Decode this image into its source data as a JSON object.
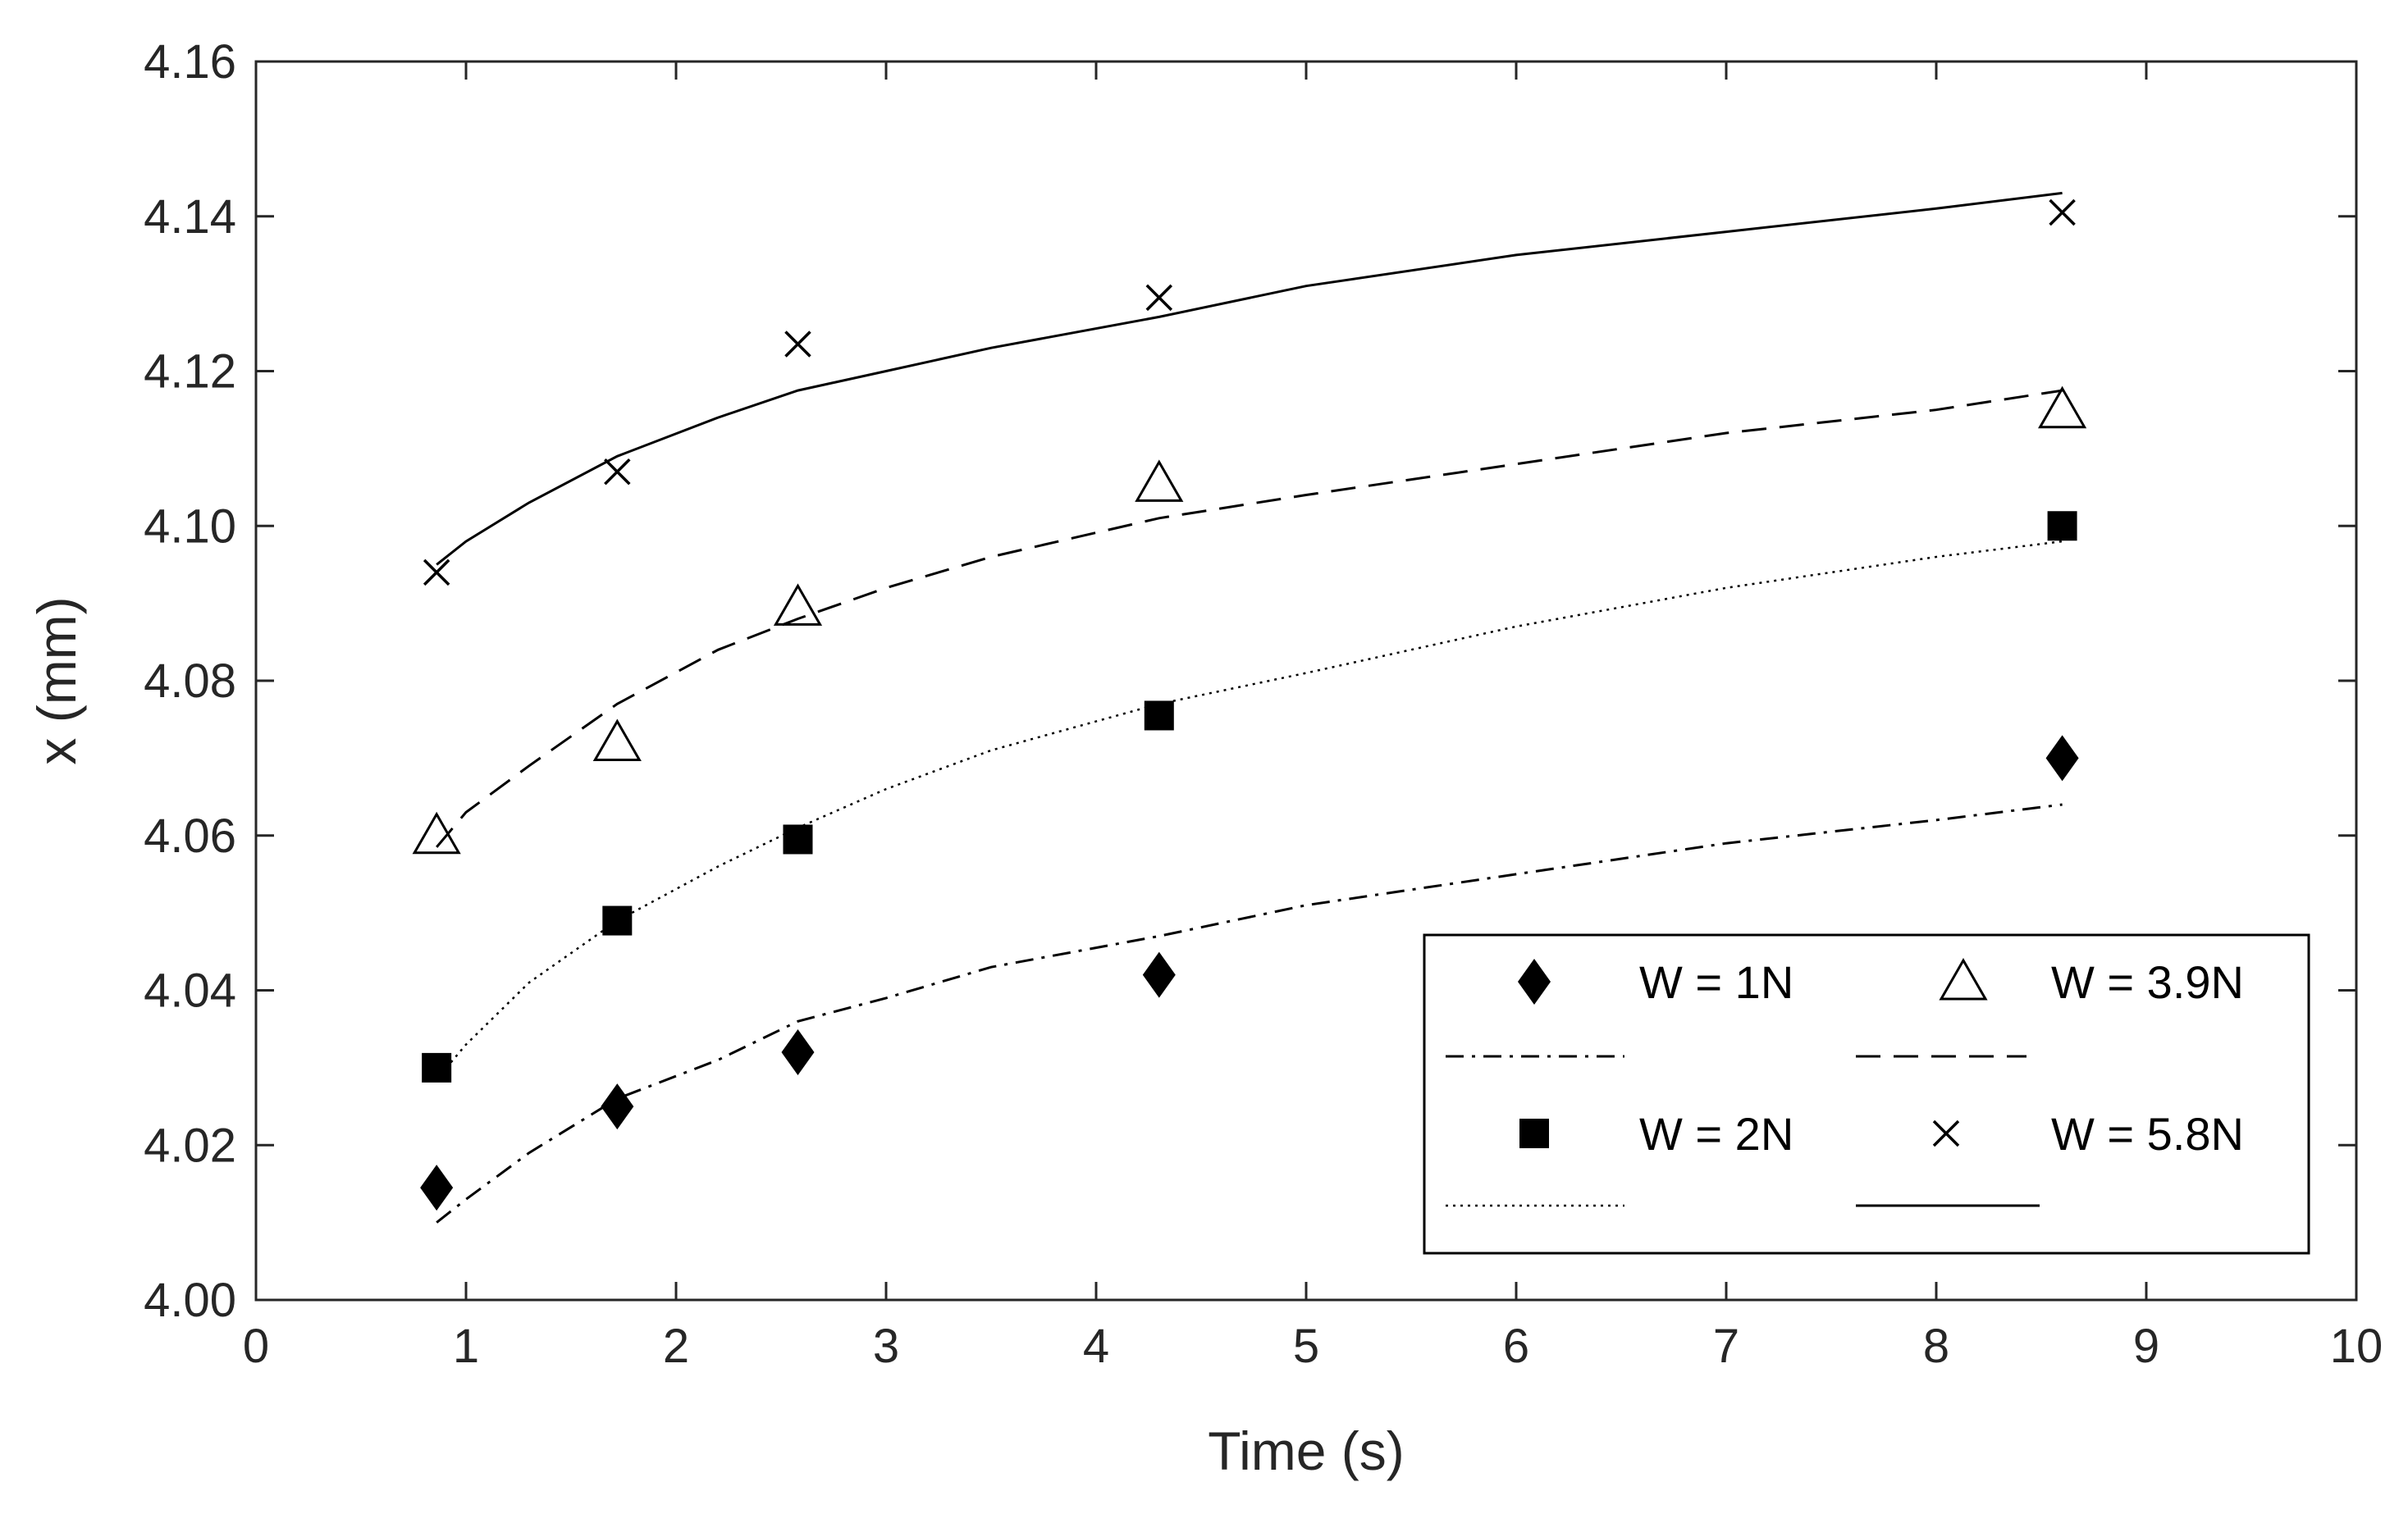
{
  "chart_data": {
    "type": "scatter",
    "title": "",
    "xlabel": "Time (s)",
    "ylabel": "x (mm)",
    "xlim": [
      0,
      10
    ],
    "ylim": [
      4.0,
      4.16
    ],
    "xticks": [
      0,
      1,
      2,
      3,
      4,
      5,
      6,
      7,
      8,
      9,
      10
    ],
    "yticks": [
      4.0,
      4.02,
      4.04,
      4.06,
      4.08,
      4.1,
      4.12,
      4.14,
      4.16
    ],
    "xtick_labels": [
      "0",
      "1",
      "2",
      "3",
      "4",
      "5",
      "6",
      "7",
      "8",
      "9",
      "10"
    ],
    "ytick_labels": [
      "4.00",
      "4.02",
      "4.04",
      "4.06",
      "4.08",
      "4.10",
      "4.12",
      "4.14",
      "4.16"
    ],
    "grid": false,
    "legend_position": "bottom-right",
    "series": [
      {
        "name": "W = 1N",
        "marker": "diamond",
        "line_style": "dashdot",
        "points": [
          [
            0.86,
            4.0145
          ],
          [
            1.72,
            4.025
          ],
          [
            2.58,
            4.032
          ],
          [
            4.3,
            4.042
          ],
          [
            8.6,
            4.07
          ]
        ],
        "fit": [
          [
            0.86,
            4.01
          ],
          [
            1.0,
            4.013
          ],
          [
            1.3,
            4.019
          ],
          [
            1.72,
            4.026
          ],
          [
            2.2,
            4.031
          ],
          [
            2.58,
            4.036
          ],
          [
            3.0,
            4.039
          ],
          [
            3.5,
            4.043
          ],
          [
            4.3,
            4.047
          ],
          [
            5.0,
            4.051
          ],
          [
            6.0,
            4.055
          ],
          [
            7.0,
            4.059
          ],
          [
            8.0,
            4.062
          ],
          [
            8.6,
            4.064
          ]
        ]
      },
      {
        "name": "W = 3.9N",
        "marker": "triangle",
        "line_style": "dashed",
        "points": [
          [
            0.86,
            4.06
          ],
          [
            1.72,
            4.072
          ],
          [
            2.58,
            4.0895
          ],
          [
            4.3,
            4.1055
          ],
          [
            8.6,
            4.115
          ]
        ],
        "fit": [
          [
            0.86,
            4.0585
          ],
          [
            1.0,
            4.063
          ],
          [
            1.3,
            4.069
          ],
          [
            1.72,
            4.077
          ],
          [
            2.2,
            4.084
          ],
          [
            2.58,
            4.088
          ],
          [
            3.0,
            4.092
          ],
          [
            3.5,
            4.096
          ],
          [
            4.3,
            4.101
          ],
          [
            5.0,
            4.104
          ],
          [
            6.0,
            4.108
          ],
          [
            7.0,
            4.112
          ],
          [
            8.0,
            4.115
          ],
          [
            8.6,
            4.1175
          ]
        ]
      },
      {
        "name": "W = 2N",
        "marker": "square",
        "line_style": "dotted",
        "points": [
          [
            0.86,
            4.03
          ],
          [
            1.72,
            4.049
          ],
          [
            2.58,
            4.0595
          ],
          [
            4.3,
            4.0755
          ],
          [
            8.6,
            4.1
          ]
        ],
        "fit": [
          [
            0.86,
            4.0285
          ],
          [
            1.0,
            4.033
          ],
          [
            1.3,
            4.041
          ],
          [
            1.72,
            4.049
          ],
          [
            2.2,
            4.056
          ],
          [
            2.58,
            4.061
          ],
          [
            3.0,
            4.066
          ],
          [
            3.5,
            4.071
          ],
          [
            4.3,
            4.077
          ],
          [
            5.0,
            4.081
          ],
          [
            6.0,
            4.087
          ],
          [
            7.0,
            4.092
          ],
          [
            8.0,
            4.096
          ],
          [
            8.6,
            4.098
          ]
        ]
      },
      {
        "name": "W = 5.8N",
        "marker": "x",
        "line_style": "solid",
        "points": [
          [
            0.86,
            4.094
          ],
          [
            1.72,
            4.107
          ],
          [
            2.58,
            4.1235
          ],
          [
            4.3,
            4.1295
          ],
          [
            8.6,
            4.1405
          ]
        ],
        "fit": [
          [
            0.86,
            4.095
          ],
          [
            1.0,
            4.098
          ],
          [
            1.3,
            4.103
          ],
          [
            1.72,
            4.109
          ],
          [
            2.2,
            4.114
          ],
          [
            2.58,
            4.1175
          ],
          [
            3.0,
            4.12
          ],
          [
            3.5,
            4.123
          ],
          [
            4.3,
            4.127
          ],
          [
            5.0,
            4.131
          ],
          [
            6.0,
            4.135
          ],
          [
            7.0,
            4.138
          ],
          [
            8.0,
            4.141
          ],
          [
            8.6,
            4.143
          ]
        ]
      }
    ]
  }
}
